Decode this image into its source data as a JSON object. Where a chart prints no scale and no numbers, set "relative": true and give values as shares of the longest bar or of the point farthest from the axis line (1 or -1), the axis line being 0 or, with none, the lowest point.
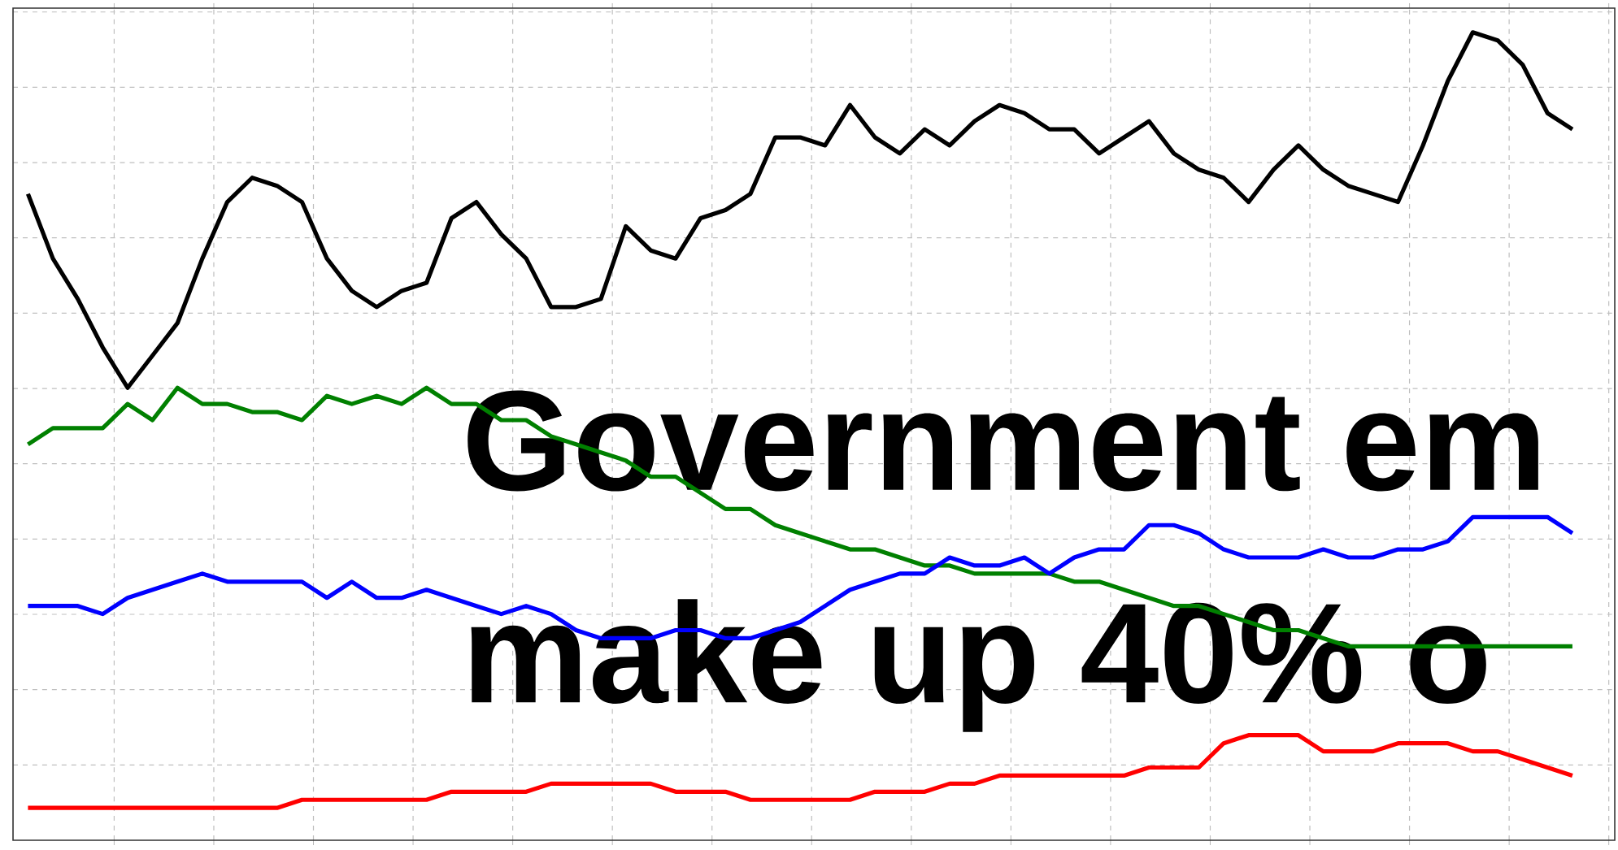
{
  "chart_data": {
    "type": "line",
    "relative": true,
    "grid": true,
    "line_style": "solid",
    "marker": "none",
    "categories": [
      null,
      null,
      null,
      null,
      null,
      null,
      null,
      null,
      null,
      null,
      null,
      null,
      null,
      null,
      null,
      null,
      null,
      null,
      null,
      null,
      null,
      null,
      null,
      null,
      null,
      null,
      null,
      null,
      null,
      null,
      null,
      null,
      null,
      null,
      null,
      null,
      null,
      null,
      null,
      null,
      null,
      null,
      null,
      null,
      null,
      null,
      null,
      null,
      null,
      null,
      null,
      null,
      null,
      null,
      null,
      null,
      null,
      null,
      null,
      null,
      null,
      null,
      null
    ],
    "series": [
      {
        "color": "#000000",
        "values": [
          0.8,
          0.72,
          0.67,
          0.61,
          0.56,
          0.6,
          0.64,
          0.72,
          0.79,
          0.82,
          0.81,
          0.79,
          0.72,
          0.68,
          0.66,
          0.68,
          0.69,
          0.77,
          0.79,
          0.75,
          0.72,
          0.66,
          0.66,
          0.67,
          0.76,
          0.73,
          0.72,
          0.77,
          0.78,
          0.8,
          0.87,
          0.87,
          0.86,
          0.91,
          0.87,
          0.85,
          0.88,
          0.86,
          0.89,
          0.91,
          0.9,
          0.88,
          0.88,
          0.85,
          0.87,
          0.89,
          0.85,
          0.83,
          0.82,
          0.79,
          0.83,
          0.86,
          0.83,
          0.81,
          0.8,
          0.79,
          0.86,
          0.94,
          1.0,
          0.99,
          0.96,
          0.9,
          0.88
        ]
      },
      {
        "color": "#008000",
        "values": [
          0.49,
          0.51,
          0.51,
          0.51,
          0.54,
          0.52,
          0.56,
          0.54,
          0.54,
          0.53,
          0.53,
          0.52,
          0.55,
          0.54,
          0.55,
          0.54,
          0.56,
          0.54,
          0.54,
          0.52,
          0.52,
          0.5,
          0.49,
          0.48,
          0.47,
          0.45,
          0.45,
          0.43,
          0.41,
          0.41,
          0.39,
          0.38,
          0.37,
          0.36,
          0.36,
          0.35,
          0.34,
          0.34,
          0.33,
          0.33,
          0.33,
          0.33,
          0.32,
          0.32,
          0.31,
          0.3,
          0.29,
          0.29,
          0.28,
          0.27,
          0.26,
          0.26,
          0.25,
          0.24,
          0.24,
          0.24,
          0.24,
          0.24,
          0.24,
          0.24,
          0.24,
          0.24,
          0.24
        ]
      },
      {
        "color": "#0000ff",
        "values": [
          0.29,
          0.29,
          0.29,
          0.28,
          0.3,
          0.31,
          0.32,
          0.33,
          0.32,
          0.32,
          0.32,
          0.32,
          0.3,
          0.32,
          0.3,
          0.3,
          0.31,
          0.3,
          0.29,
          0.28,
          0.29,
          0.28,
          0.26,
          0.25,
          0.25,
          0.25,
          0.26,
          0.26,
          0.25,
          0.25,
          0.26,
          0.27,
          0.29,
          0.31,
          0.32,
          0.33,
          0.33,
          0.35,
          0.34,
          0.34,
          0.35,
          0.33,
          0.35,
          0.36,
          0.36,
          0.39,
          0.39,
          0.38,
          0.36,
          0.35,
          0.35,
          0.35,
          0.36,
          0.35,
          0.35,
          0.36,
          0.36,
          0.37,
          0.4,
          0.4,
          0.4,
          0.4,
          0.38
        ]
      },
      {
        "color": "#ff0000",
        "values": [
          0.04,
          0.04,
          0.04,
          0.04,
          0.04,
          0.04,
          0.04,
          0.04,
          0.04,
          0.04,
          0.04,
          0.05,
          0.05,
          0.05,
          0.05,
          0.05,
          0.05,
          0.06,
          0.06,
          0.06,
          0.06,
          0.07,
          0.07,
          0.07,
          0.07,
          0.07,
          0.06,
          0.06,
          0.06,
          0.05,
          0.05,
          0.05,
          0.05,
          0.05,
          0.06,
          0.06,
          0.06,
          0.07,
          0.07,
          0.08,
          0.08,
          0.08,
          0.08,
          0.08,
          0.08,
          0.09,
          0.09,
          0.09,
          0.12,
          0.13,
          0.13,
          0.13,
          0.11,
          0.11,
          0.11,
          0.12,
          0.12,
          0.12,
          0.11,
          0.11,
          0.1,
          0.09,
          0.08
        ]
      }
    ],
    "annotations": [
      "Government em",
      "make up 40% o"
    ]
  }
}
